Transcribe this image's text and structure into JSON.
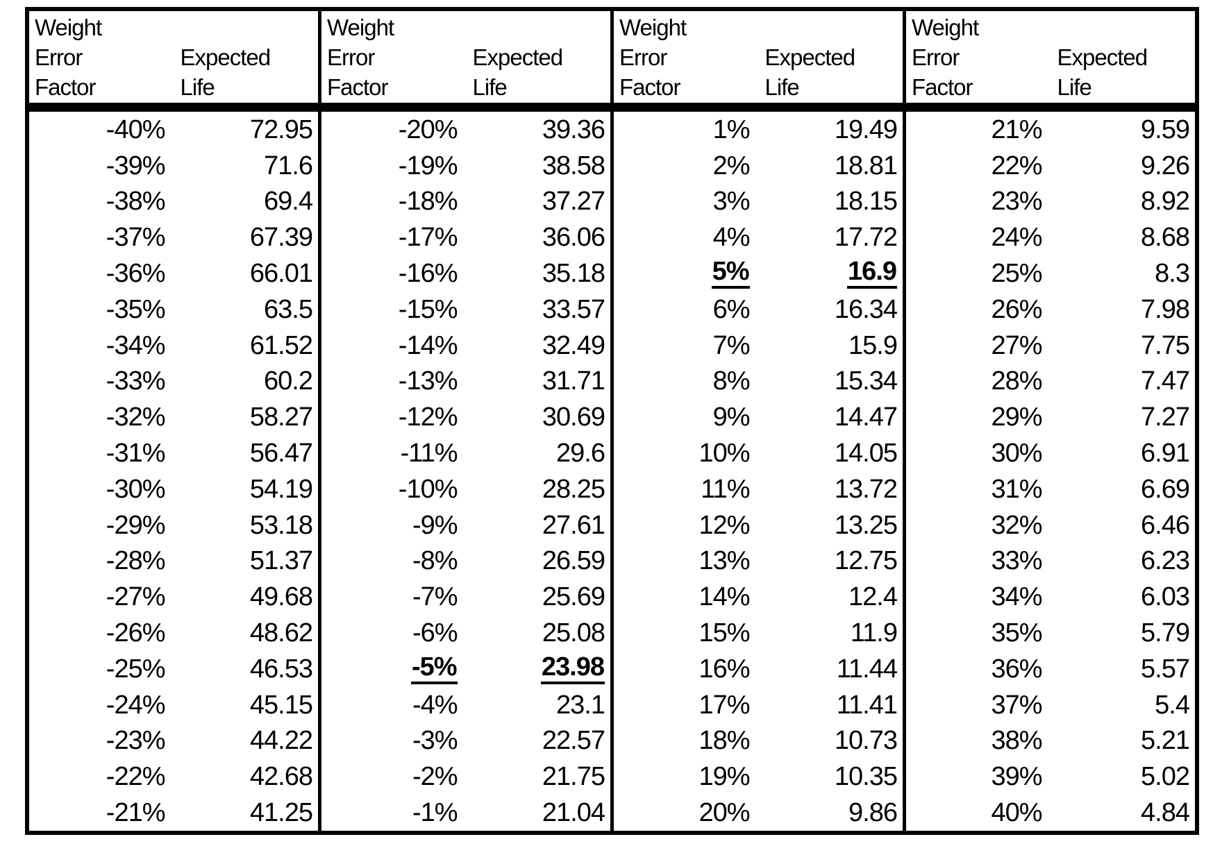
{
  "header": {
    "weight": "Weight",
    "error": "Error",
    "factor": "Factor",
    "expected": "Expected",
    "life": "Life"
  },
  "colors": {
    "text": "#000000",
    "background": "#ffffff",
    "border": "#000000"
  },
  "chart_data": {
    "type": "table",
    "columns": [
      "Weight Error Factor",
      "Expected Life"
    ],
    "note_highlighted_rows": [
      [
        "-5%",
        "23.98"
      ],
      [
        "5%",
        "16.9"
      ]
    ]
  },
  "groups": [
    {
      "rows": [
        {
          "factor": "-40%",
          "life": "72.95"
        },
        {
          "factor": "-39%",
          "life": "71.6"
        },
        {
          "factor": "-38%",
          "life": "69.4"
        },
        {
          "factor": "-37%",
          "life": "67.39"
        },
        {
          "factor": "-36%",
          "life": "66.01"
        },
        {
          "factor": "-35%",
          "life": "63.5"
        },
        {
          "factor": "-34%",
          "life": "61.52"
        },
        {
          "factor": "-33%",
          "life": "60.2"
        },
        {
          "factor": "-32%",
          "life": "58.27"
        },
        {
          "factor": "-31%",
          "life": "56.47"
        },
        {
          "factor": "-30%",
          "life": "54.19"
        },
        {
          "factor": "-29%",
          "life": "53.18"
        },
        {
          "factor": "-28%",
          "life": "51.37"
        },
        {
          "factor": "-27%",
          "life": "49.68"
        },
        {
          "factor": "-26%",
          "life": "48.62"
        },
        {
          "factor": "-25%",
          "life": "46.53"
        },
        {
          "factor": "-24%",
          "life": "45.15"
        },
        {
          "factor": "-23%",
          "life": "44.22"
        },
        {
          "factor": "-22%",
          "life": "42.68"
        },
        {
          "factor": "-21%",
          "life": "41.25"
        }
      ]
    },
    {
      "rows": [
        {
          "factor": "-20%",
          "life": "39.36"
        },
        {
          "factor": "-19%",
          "life": "38.58"
        },
        {
          "factor": "-18%",
          "life": "37.27"
        },
        {
          "factor": "-17%",
          "life": "36.06"
        },
        {
          "factor": "-16%",
          "life": "35.18"
        },
        {
          "factor": "-15%",
          "life": "33.57"
        },
        {
          "factor": "-14%",
          "life": "32.49"
        },
        {
          "factor": "-13%",
          "life": "31.71"
        },
        {
          "factor": "-12%",
          "life": "30.69"
        },
        {
          "factor": "-11%",
          "life": "29.6"
        },
        {
          "factor": "-10%",
          "life": "28.25"
        },
        {
          "factor": "-9%",
          "life": "27.61"
        },
        {
          "factor": "-8%",
          "life": "26.59"
        },
        {
          "factor": "-7%",
          "life": "25.69"
        },
        {
          "factor": "-6%",
          "life": "25.08"
        },
        {
          "factor": "-5%",
          "life": "23.98",
          "highlight": true
        },
        {
          "factor": "-4%",
          "life": "23.1"
        },
        {
          "factor": "-3%",
          "life": "22.57"
        },
        {
          "factor": "-2%",
          "life": "21.75"
        },
        {
          "factor": "-1%",
          "life": "21.04"
        }
      ]
    },
    {
      "rows": [
        {
          "factor": "1%",
          "life": "19.49"
        },
        {
          "factor": "2%",
          "life": "18.81"
        },
        {
          "factor": "3%",
          "life": "18.15"
        },
        {
          "factor": "4%",
          "life": "17.72"
        },
        {
          "factor": "5%",
          "life": "16.9",
          "highlight": true
        },
        {
          "factor": "6%",
          "life": "16.34"
        },
        {
          "factor": "7%",
          "life": "15.9"
        },
        {
          "factor": "8%",
          "life": "15.34"
        },
        {
          "factor": "9%",
          "life": "14.47"
        },
        {
          "factor": "10%",
          "life": "14.05"
        },
        {
          "factor": "11%",
          "life": "13.72"
        },
        {
          "factor": "12%",
          "life": "13.25"
        },
        {
          "factor": "13%",
          "life": "12.75"
        },
        {
          "factor": "14%",
          "life": "12.4"
        },
        {
          "factor": "15%",
          "life": "11.9"
        },
        {
          "factor": "16%",
          "life": "11.44"
        },
        {
          "factor": "17%",
          "life": "11.41"
        },
        {
          "factor": "18%",
          "life": "10.73"
        },
        {
          "factor": "19%",
          "life": "10.35"
        },
        {
          "factor": "20%",
          "life": "9.86"
        }
      ]
    },
    {
      "rows": [
        {
          "factor": "21%",
          "life": "9.59"
        },
        {
          "factor": "22%",
          "life": "9.26"
        },
        {
          "factor": "23%",
          "life": "8.92"
        },
        {
          "factor": "24%",
          "life": "8.68"
        },
        {
          "factor": "25%",
          "life": "8.3"
        },
        {
          "factor": "26%",
          "life": "7.98"
        },
        {
          "factor": "27%",
          "life": "7.75"
        },
        {
          "factor": "28%",
          "life": "7.47"
        },
        {
          "factor": "29%",
          "life": "7.27"
        },
        {
          "factor": "30%",
          "life": "6.91"
        },
        {
          "factor": "31%",
          "life": "6.69"
        },
        {
          "factor": "32%",
          "life": "6.46"
        },
        {
          "factor": "33%",
          "life": "6.23"
        },
        {
          "factor": "34%",
          "life": "6.03"
        },
        {
          "factor": "35%",
          "life": "5.79"
        },
        {
          "factor": "36%",
          "life": "5.57"
        },
        {
          "factor": "37%",
          "life": "5.4"
        },
        {
          "factor": "38%",
          "life": "5.21"
        },
        {
          "factor": "39%",
          "life": "5.02"
        },
        {
          "factor": "40%",
          "life": "4.84"
        }
      ]
    }
  ]
}
